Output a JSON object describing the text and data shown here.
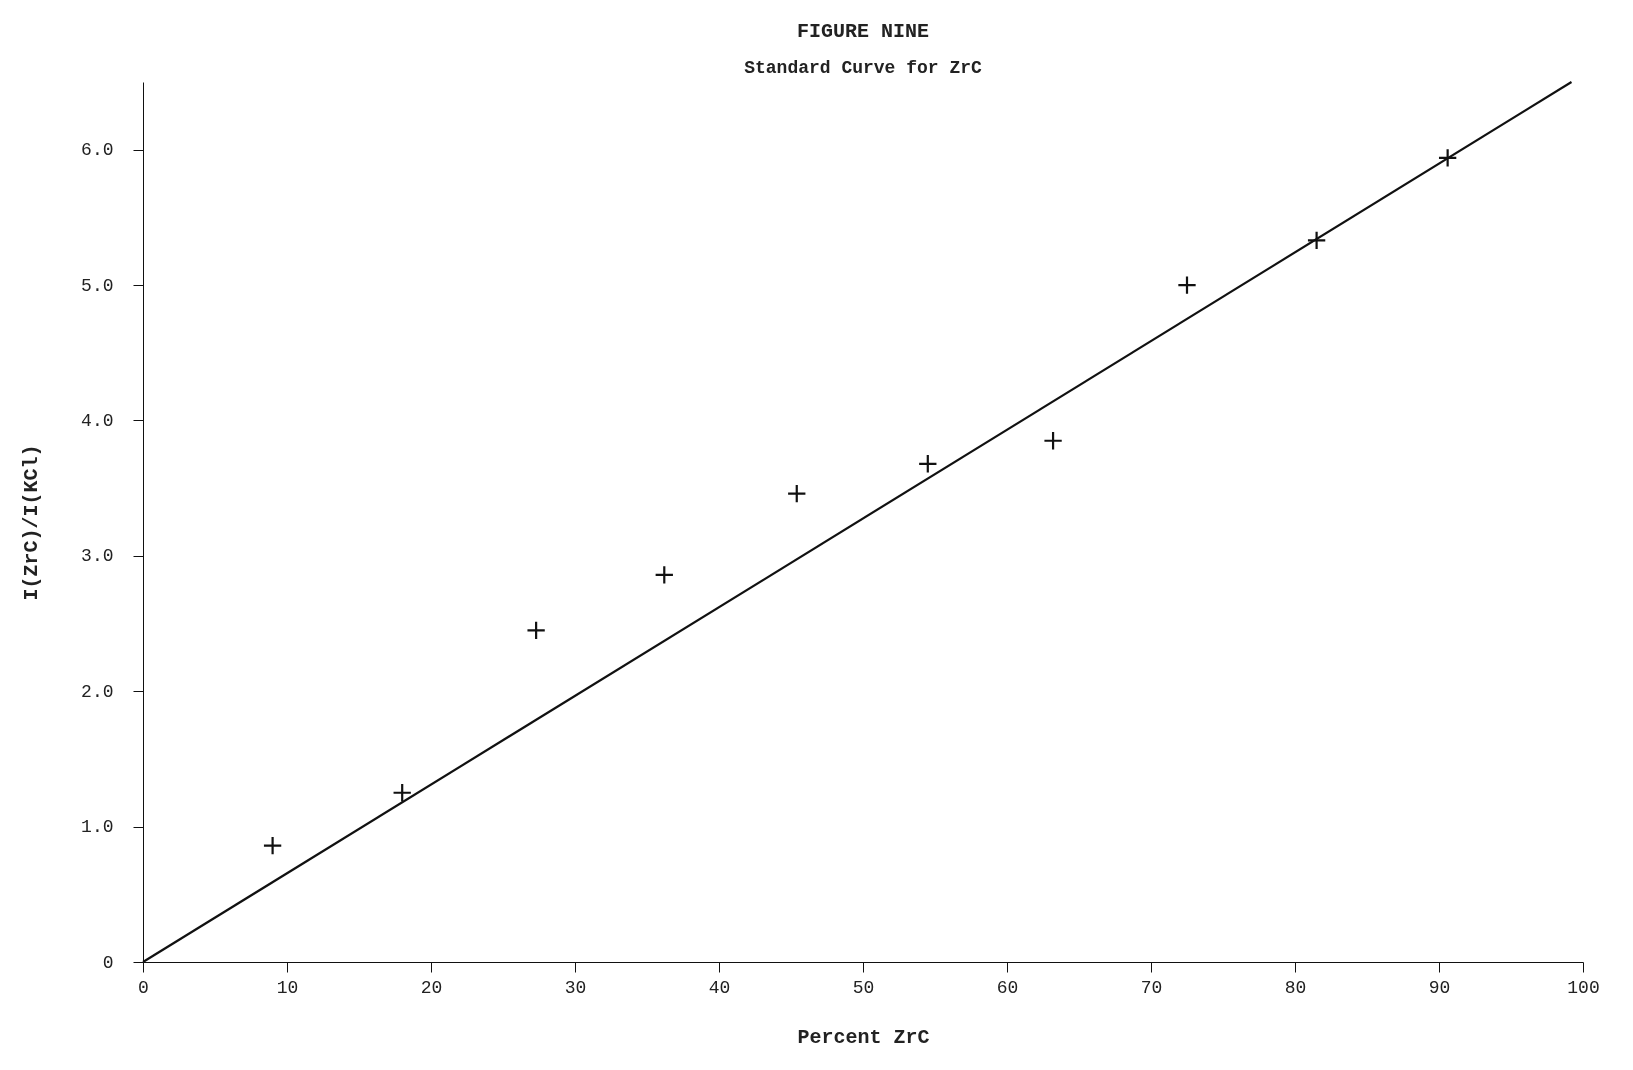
{
  "chart_data": {
    "type": "scatter",
    "title": "FIGURE NINE",
    "subtitle": "Standard Curve for ZrC",
    "xlabel": "Percent ZrC",
    "ylabel": "I(ZrC)/I(KCl)",
    "xlim": [
      0,
      100
    ],
    "xticks": [
      0,
      10,
      20,
      30,
      40,
      50,
      60,
      70,
      80,
      90,
      100
    ],
    "ylim": [
      0,
      6.5
    ],
    "yticks": [
      0,
      {
        "value": 1,
        "label": "1.0"
      },
      {
        "value": 2,
        "label": "2.0"
      },
      {
        "value": 3,
        "label": "3.0"
      },
      {
        "value": 4,
        "label": "4.0"
      },
      {
        "value": 5,
        "label": "5.0"
      },
      {
        "value": 6,
        "label": "6.0"
      }
    ],
    "grid": false,
    "series": [
      {
        "marker": "cross",
        "color": "#111111",
        "x": [
          9.0,
          18.0,
          27.3,
          36.2,
          45.4,
          54.5,
          63.2,
          72.5,
          81.5,
          90.6
        ],
        "values": [
          0.86,
          1.25,
          2.45,
          2.86,
          3.46,
          3.68,
          3.85,
          5.0,
          5.33,
          5.94
        ]
      },
      {
        "type": "line",
        "color": "#111111",
        "x": [
          0,
          99.2
        ],
        "values": [
          0,
          6.5
        ]
      }
    ]
  }
}
